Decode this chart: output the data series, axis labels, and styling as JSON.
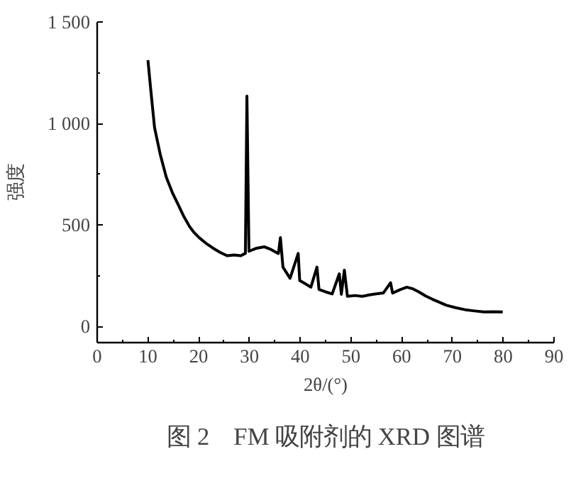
{
  "chart_data": {
    "type": "line",
    "title": "图 2　FM 吸附剂的 XRD 图谱",
    "xlabel": "2θ/(°)",
    "ylabel": "强度",
    "x": [
      10.0,
      10.5,
      11.3,
      12.4,
      13.6,
      14.8,
      15.9,
      17.0,
      18.2,
      19.1,
      20.1,
      21.4,
      22.8,
      24.2,
      25.6,
      27.0,
      28.3,
      29.2,
      29.5,
      29.9,
      31.4,
      32.9,
      34.3,
      35.7,
      36.1,
      36.6,
      38.0,
      39.6,
      39.9,
      41.0,
      42.1,
      43.3,
      43.7,
      45.0,
      46.3,
      47.7,
      48.1,
      48.7,
      49.3,
      50.8,
      52.3,
      53.6,
      55.0,
      56.4,
      57.8,
      58.2,
      59.6,
      61.0,
      62.2,
      63.3,
      64.7,
      66.1,
      67.5,
      68.8,
      70.6,
      72.5,
      74.4,
      76.2,
      78.0,
      79.9
    ],
    "series": [
      {
        "color": "#000000",
        "values": [
          1312,
          1180,
          980,
          850,
          736,
          660,
          603,
          545,
          492,
          462,
          437,
          410,
          386,
          365,
          348,
          352,
          348,
          360,
          1135,
          370,
          385,
          392,
          378,
          359,
          437,
          292,
          237,
          359,
          226,
          210,
          193,
          292,
          182,
          170,
          160,
          259,
          158,
          277,
          148,
          152,
          148,
          155,
          160,
          165,
          215,
          164,
          180,
          193,
          185,
          171,
          150,
          133,
          118,
          104,
          92,
          82,
          76,
          71,
          72,
          71
        ]
      }
    ],
    "xlim": [
      0,
      90
    ],
    "xticks": [
      0,
      {
        "value": 5,
        "label": null
      },
      10,
      {
        "value": 15,
        "label": null
      },
      20,
      {
        "value": 25,
        "label": null
      },
      30,
      {
        "value": 35,
        "label": null
      },
      40,
      {
        "value": 45,
        "label": null
      },
      50,
      {
        "value": 55,
        "label": null
      },
      60,
      {
        "value": 65,
        "label": null
      },
      70,
      {
        "value": 75,
        "label": null
      },
      80,
      {
        "value": 85,
        "label": null
      },
      90
    ],
    "ylim": [
      -80,
      1500
    ],
    "yticks": [
      0,
      {
        "value": 250,
        "label": null
      },
      500,
      {
        "value": 750,
        "label": null
      },
      {
        "value": 1000,
        "label": "1 000"
      },
      {
        "value": 1250,
        "label": null
      },
      {
        "value": 1500,
        "label": "1 500"
      }
    ],
    "grid": false,
    "marker": "none",
    "line_style": "solid"
  }
}
